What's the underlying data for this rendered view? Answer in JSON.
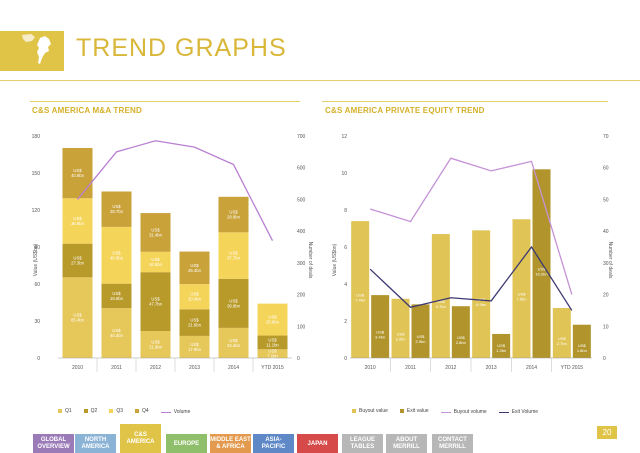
{
  "page": {
    "title": "TREND GRAPHS",
    "page_number": "20"
  },
  "colors": {
    "q1": "#e6c75a",
    "q2": "#b89a2b",
    "q3": "#f5d45a",
    "q4": "#c9a23a",
    "volume": "#b97fd1",
    "buyout": "#e0c455",
    "exit": "#b1952c",
    "buyout_volume": "#c493d6",
    "exit_volume": "#3d3a73"
  },
  "nav": [
    {
      "label": "GLOBAL\nOVERVIEW",
      "color": "#9b7ab8"
    },
    {
      "label": "NORTH\nAMERICA",
      "color": "#8bb3d6"
    },
    {
      "label": "C&S\nAMERICA",
      "color": "#e0c447"
    },
    {
      "label": "EUROPE",
      "color": "#8fbf6a"
    },
    {
      "label": "MIDDLE EAST\n& AFRICA",
      "color": "#e39a4e"
    },
    {
      "label": "ASIA-\nPACIFIC",
      "color": "#5f88c7"
    },
    {
      "label": "JAPAN",
      "color": "#d64a4a"
    },
    {
      "label": "LEAGUE\nTABLES",
      "color": "#b7b7b7"
    },
    {
      "label": "ABOUT\nMERRILL",
      "color": "#b7b7b7"
    },
    {
      "label": "CONTACT\nMERRILL",
      "color": "#b7b7b7"
    }
  ],
  "chart_data": [
    {
      "type": "bar",
      "title": "C&S AMERICA M&A TREND",
      "ylabel": "Value (US$bn)",
      "y2label": "Number of deals",
      "ylim": [
        0,
        180
      ],
      "yticks": [
        "0",
        "30",
        "60",
        "90",
        "120",
        "150",
        "180"
      ],
      "y2lim": [
        0,
        700
      ],
      "y2ticks": [
        "0",
        "100",
        "200",
        "300",
        "400",
        "500",
        "600",
        "700"
      ],
      "categories": [
        "2010",
        "2011",
        "2012",
        "2013",
        "2014",
        "YTD 2015"
      ],
      "series": [
        {
          "name": "Q1",
          "values": [
            65.4,
            40.4,
            21.9,
            17.9,
            24.4,
            7.1
          ]
        },
        {
          "name": "Q2",
          "values": [
            27.3,
            19.9,
            47.7,
            21.6,
            39.8,
            11.1
          ]
        },
        {
          "name": "Q3",
          "values": [
            36.8,
            46.0,
            16.5,
            20.4,
            37.7,
            25.9
          ]
        },
        {
          "name": "Q4",
          "values": [
            40.8,
            28.7,
            31.4,
            26.4,
            28.8,
            0
          ]
        }
      ],
      "segment_labels": [
        [
          "US$ 65.4bn",
          "US$ 27.3bn",
          "US$ 36.8bn",
          "US$ 40.8bn"
        ],
        [
          "US$ 40.4bn",
          "US$ 19.9bn",
          "US$ 46.0bn",
          "US$ 28.7bn"
        ],
        [
          "US$ 21.9bn",
          "US$ 47.7bn",
          "US$ 16.5bn",
          "US$ 31.4bn"
        ],
        [
          "US$ 17.9bn",
          "US$ 21.6bn",
          "US$ 20.4bn",
          "US$ 26.4bn"
        ],
        [
          "US$ 24.4bn",
          "US$ 39.8bn",
          "US$ 37.7bn",
          "US$ 28.8bn"
        ],
        [
          "US$ 7.1bn",
          "US$ 11.1bn",
          "US$ 25.9bn",
          ""
        ]
      ],
      "line": {
        "name": "Volume",
        "values": [
          500,
          650,
          685,
          665,
          610,
          370
        ]
      },
      "legend": [
        "Q1",
        "Q2",
        "Q3",
        "Q4",
        "Volume"
      ]
    },
    {
      "type": "bar",
      "title": "C&S AMERICA PRIVATE EQUITY TREND",
      "ylabel": "Value (US$bn)",
      "y2label": "Number of deals",
      "ylim": [
        0,
        12
      ],
      "yticks": [
        "0",
        "2",
        "4",
        "6",
        "8",
        "10",
        "12"
      ],
      "y2lim": [
        0,
        70
      ],
      "y2ticks": [
        "0",
        "10",
        "20",
        "30",
        "40",
        "50",
        "60",
        "70"
      ],
      "categories": [
        "2010",
        "2011",
        "2012",
        "2013",
        "2014",
        "YTD 2015"
      ],
      "series": [
        {
          "name": "Buyout value",
          "values": [
            7.4,
            3.2,
            6.7,
            6.9,
            7.5,
            2.7
          ]
        },
        {
          "name": "Exit value",
          "values": [
            3.4,
            2.9,
            2.8,
            1.3,
            10.2,
            1.8
          ]
        }
      ],
      "bar_labels": [
        [
          "US$ 7.4bn",
          "US$ 3.2bn",
          "US$ 6.7bn",
          "US$ 6.9bn",
          "US$ 7.5bn",
          "US$ 2.7bn"
        ],
        [
          "US$ 3.4bn",
          "US$ 2.9bn",
          "US$ 2.8bn",
          "US$ 1.3bn",
          "US$ 10.2bn",
          "US$ 1.8bn"
        ]
      ],
      "lines": [
        {
          "name": "Buyout volume",
          "values": [
            47,
            43,
            63,
            59,
            62,
            20
          ]
        },
        {
          "name": "Exit volume",
          "values": [
            28,
            16,
            19,
            18,
            35,
            15
          ]
        }
      ],
      "legend": [
        "Buyout value",
        "Exit value",
        "Buyout volume",
        "Exit Volume"
      ]
    }
  ]
}
